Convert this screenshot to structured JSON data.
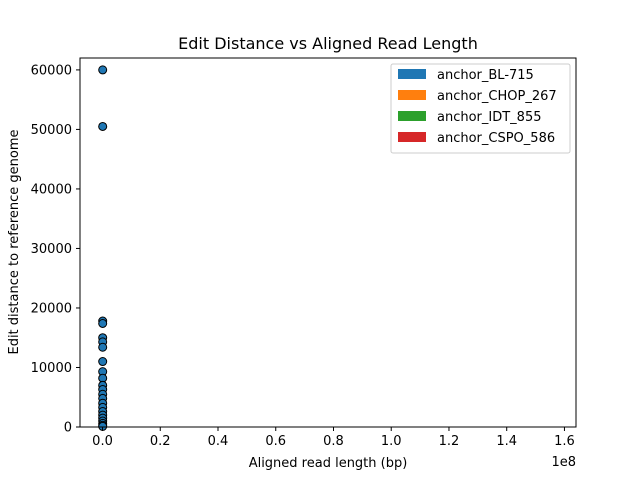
{
  "chart_data": {
    "type": "scatter",
    "title": "Edit Distance vs Aligned Read Length",
    "xlabel": "Aligned read length (bp)",
    "ylabel": "Edit distance to reference genome",
    "x_offset_label": "1e8",
    "xlim": [
      -7800000,
      164000000
    ],
    "ylim": [
      0,
      62000
    ],
    "x_ticks": [
      0,
      20000000,
      40000000,
      60000000,
      80000000,
      100000000,
      120000000,
      140000000,
      160000000
    ],
    "x_tick_labels": [
      "0.0",
      "0.2",
      "0.4",
      "0.6",
      "0.8",
      "1.0",
      "1.2",
      "1.4",
      "1.6"
    ],
    "y_ticks": [
      0,
      10000,
      20000,
      30000,
      40000,
      50000,
      60000
    ],
    "y_tick_labels": [
      "0",
      "10000",
      "20000",
      "30000",
      "40000",
      "50000",
      "60000"
    ],
    "grid": false,
    "legend_placement": "top-right",
    "legend": [
      {
        "name": "anchor_BL-715",
        "color": "#1f77b4"
      },
      {
        "name": "anchor_CHOP_267",
        "color": "#ff7f0e"
      },
      {
        "name": "anchor_IDT_855",
        "color": "#2ca02c"
      },
      {
        "name": "anchor_CSPO_586",
        "color": "#d62728"
      }
    ],
    "series": [
      {
        "color": "#1f77b4",
        "edgecolor": "#000000",
        "points": [
          {
            "x": 60000,
            "y": 60000
          },
          {
            "x": 60000,
            "y": 50500
          },
          {
            "x": 60000,
            "y": 17800
          },
          {
            "x": 60000,
            "y": 17400
          },
          {
            "x": 60000,
            "y": 15000
          },
          {
            "x": 60000,
            "y": 14300
          },
          {
            "x": 60000,
            "y": 13400
          },
          {
            "x": 60000,
            "y": 11000
          },
          {
            "x": 60000,
            "y": 9300
          },
          {
            "x": 60000,
            "y": 8200
          },
          {
            "x": 60000,
            "y": 7000
          },
          {
            "x": 60000,
            "y": 6300
          },
          {
            "x": 60000,
            "y": 5500
          },
          {
            "x": 60000,
            "y": 4800
          },
          {
            "x": 60000,
            "y": 4000
          },
          {
            "x": 60000,
            "y": 3300
          },
          {
            "x": 60000,
            "y": 2600
          },
          {
            "x": 60000,
            "y": 2000
          },
          {
            "x": 60000,
            "y": 1500
          },
          {
            "x": 60000,
            "y": 1000
          },
          {
            "x": 60000,
            "y": 600
          },
          {
            "x": 60000,
            "y": 300
          },
          {
            "x": 60000,
            "y": 100
          }
        ]
      }
    ]
  }
}
